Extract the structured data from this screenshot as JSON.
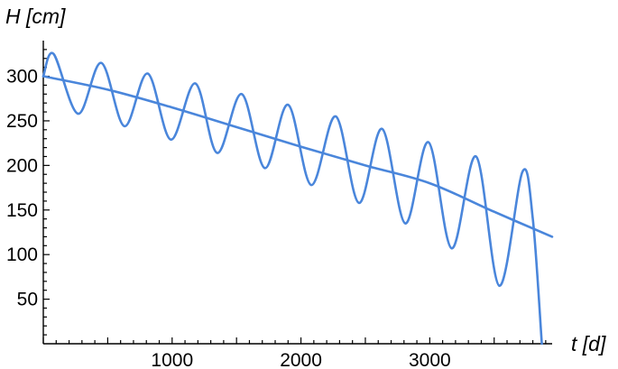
{
  "chart_data": {
    "type": "line",
    "title": "",
    "xlabel": "t [d]",
    "ylabel": "H [cm]",
    "xlim": [
      0,
      3950
    ],
    "ylim": [
      0,
      340
    ],
    "x_ticks": [
      1000,
      2000,
      3000
    ],
    "x_tick_labels": [
      "1000",
      "2000",
      "3000"
    ],
    "y_ticks": [
      50,
      100,
      150,
      200,
      250,
      300
    ],
    "y_tick_labels": [
      "50",
      "100",
      "150",
      "200",
      "250",
      "300"
    ],
    "grid": false,
    "legend": "none",
    "color": "#4a86db",
    "series": [
      {
        "x": [
          0,
          500,
          1000,
          1500,
          2000,
          2500,
          3000,
          3500,
          3950
        ],
        "values": [
          300,
          285,
          265,
          243,
          221,
          200,
          180,
          148,
          120
        ]
      },
      {
        "x": [
          0,
          80,
          270,
          450,
          630,
          810,
          990,
          1180,
          1350,
          1540,
          1720,
          1900,
          2080,
          2270,
          2450,
          2630,
          2810,
          2990,
          3170,
          3360,
          3540,
          3720,
          3800,
          3870
        ],
        "values": [
          300,
          325,
          258,
          315,
          244,
          303,
          229,
          292,
          214,
          280,
          197,
          268,
          178,
          255,
          158,
          241,
          135,
          226,
          107,
          210,
          65,
          193,
          140,
          0
        ]
      }
    ]
  }
}
